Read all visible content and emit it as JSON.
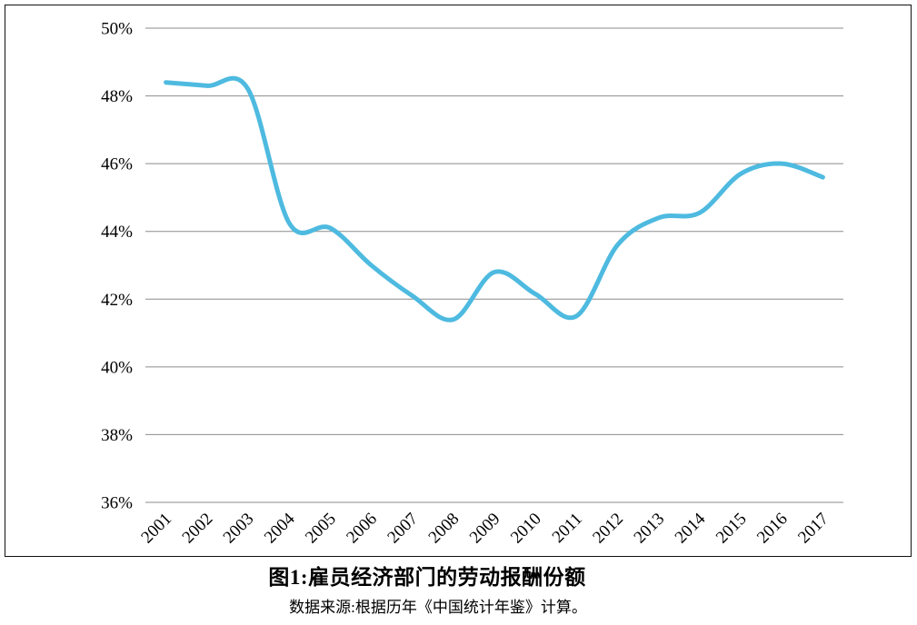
{
  "figure": {
    "title": "图1:雇员经济部门的劳动报酬份额",
    "source": "数据来源:根据历年《中国统计年鉴》计算。"
  },
  "chart_data": {
    "type": "line",
    "title": "图1:雇员经济部门的劳动报酬份额",
    "categories": [
      "2001",
      "2002",
      "2003",
      "2004",
      "2005",
      "2006",
      "2007",
      "2008",
      "2009",
      "2010",
      "2011",
      "2012",
      "2013",
      "2014",
      "2015",
      "2016",
      "2017"
    ],
    "values": [
      48.4,
      48.3,
      48.2,
      44.25,
      44.1,
      43.0,
      42.1,
      41.4,
      42.8,
      42.15,
      41.5,
      43.6,
      44.4,
      44.55,
      45.7,
      46.0,
      45.6
    ],
    "xlabel": "",
    "ylabel": "",
    "ylim": [
      36,
      50
    ],
    "ytick_step": 2,
    "ytick_labels": [
      "36%",
      "38%",
      "40%",
      "42%",
      "44%",
      "46%",
      "48%",
      "50%"
    ],
    "grid": true,
    "legend": false,
    "smooth": true,
    "colors": {
      "line": "#4EBAE0",
      "gridline": "#8C8C8C",
      "frame": "#111111",
      "text": "#000000"
    }
  }
}
